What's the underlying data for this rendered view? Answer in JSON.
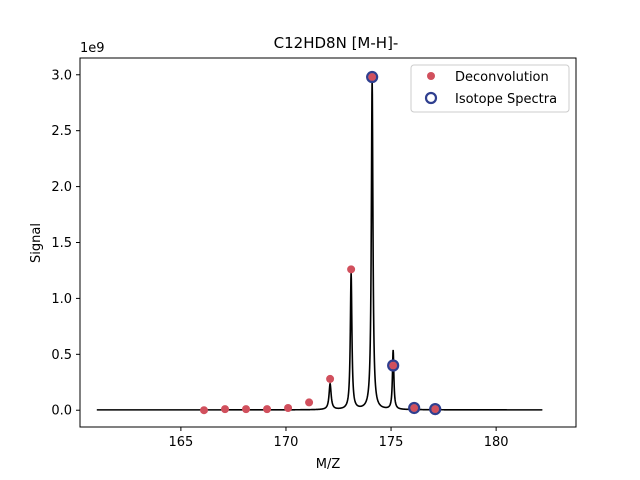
{
  "chart_data": {
    "type": "line",
    "title": "C12HD8N [M-H]-",
    "xlabel": "M/Z",
    "ylabel": "Signal",
    "y_scale_label": "1e9",
    "xlim": [
      160.2,
      183.8
    ],
    "ylim": [
      -0.15,
      3.15
    ],
    "x_ticks": [
      165,
      170,
      175,
      180
    ],
    "y_ticks": [
      0.0,
      0.5,
      1.0,
      1.5,
      2.0,
      2.5,
      3.0
    ],
    "x_tick_labels": [
      "165",
      "170",
      "175",
      "180"
    ],
    "y_tick_labels": [
      "0.0",
      "0.5",
      "1.0",
      "1.5",
      "2.0",
      "2.5",
      "3.0"
    ],
    "legend_position": "top-right",
    "series": [
      {
        "name": "Deconvolution",
        "kind": "scatter",
        "color": "#d1505d",
        "x": [
          166.1,
          167.1,
          168.1,
          169.1,
          170.1,
          171.1,
          172.1,
          173.1,
          174.1,
          175.1,
          176.1,
          177.1
        ],
        "y": [
          0.0,
          0.01,
          0.01,
          0.01,
          0.02,
          0.07,
          0.28,
          1.26,
          2.98,
          0.4,
          0.02,
          0.01
        ]
      },
      {
        "name": "Isotope Spectra",
        "kind": "scatter-hollow",
        "color": "#2f3f8f",
        "x": [
          174.1,
          175.1,
          176.1,
          177.1
        ],
        "y": [
          2.98,
          0.4,
          0.02,
          0.01
        ]
      }
    ],
    "spectrum": {
      "color": "#000000",
      "peaks": [
        {
          "center": 172.1,
          "height": 0.23,
          "width": 0.06
        },
        {
          "center": 173.1,
          "height": 1.22,
          "width": 0.045
        },
        {
          "center": 174.1,
          "height": 2.96,
          "width": 0.045
        },
        {
          "center": 175.1,
          "height": 0.53,
          "width": 0.04
        },
        {
          "center": 176.1,
          "height": 0.03,
          "width": 0.05
        },
        {
          "center": 177.1,
          "height": 0.02,
          "width": 0.05
        }
      ],
      "x_start": 161.0,
      "x_end": 182.2
    }
  }
}
